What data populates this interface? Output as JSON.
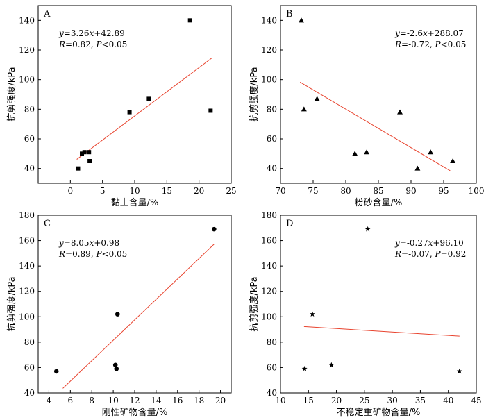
{
  "chart_data": [
    {
      "type": "scatter",
      "panel": "A",
      "xlabel": "黏土含量/%",
      "ylabel": "抗剪强度/kPa",
      "xlim": [
        -5,
        25
      ],
      "ylim": [
        30,
        150
      ],
      "xticks": [
        0,
        5,
        10,
        15,
        20,
        25
      ],
      "yticks": [
        40,
        60,
        80,
        100,
        120,
        140
      ],
      "marker": "square",
      "points": [
        {
          "x": 1.2,
          "y": 40
        },
        {
          "x": 1.8,
          "y": 50
        },
        {
          "x": 2.2,
          "y": 51
        },
        {
          "x": 2.9,
          "y": 51
        },
        {
          "x": 3.0,
          "y": 45
        },
        {
          "x": 9.2,
          "y": 78
        },
        {
          "x": 12.2,
          "y": 87
        },
        {
          "x": 18.6,
          "y": 140
        },
        {
          "x": 21.8,
          "y": 79
        }
      ],
      "fit": {
        "slope": 3.26,
        "intercept": 42.89,
        "x_range": [
          1.0,
          22.0
        ]
      },
      "equation": "y=3.26x+42.89",
      "stats": "R=0.82, P<0.05",
      "legend_position": "top-left"
    },
    {
      "type": "scatter",
      "panel": "B",
      "xlabel": "粉砂含量/%",
      "ylabel": "抗剪强度/kPa",
      "xlim": [
        70,
        100
      ],
      "ylim": [
        30,
        150
      ],
      "xticks": [
        70,
        75,
        80,
        85,
        90,
        95,
        100
      ],
      "yticks": [
        40,
        60,
        80,
        100,
        120,
        140
      ],
      "marker": "triangle",
      "points": [
        {
          "x": 73.2,
          "y": 140
        },
        {
          "x": 73.6,
          "y": 80
        },
        {
          "x": 75.6,
          "y": 87
        },
        {
          "x": 81.4,
          "y": 50
        },
        {
          "x": 83.2,
          "y": 51
        },
        {
          "x": 88.3,
          "y": 78
        },
        {
          "x": 91.0,
          "y": 40
        },
        {
          "x": 93.0,
          "y": 51
        },
        {
          "x": 96.4,
          "y": 45
        }
      ],
      "fit": {
        "slope": -2.6,
        "intercept": 288.07,
        "x_range": [
          73.0,
          96.0
        ]
      },
      "equation": "y=-2.6x+288.07",
      "stats": "R=-0.72, P<0.05",
      "legend_position": "top-right"
    },
    {
      "type": "scatter",
      "panel": "C",
      "xlabel": "刚性矿物含量/%",
      "ylabel": "抗剪强度/kPa",
      "xlim": [
        3,
        21
      ],
      "ylim": [
        40,
        180
      ],
      "xticks": [
        4,
        6,
        8,
        10,
        12,
        14,
        16,
        18,
        20
      ],
      "yticks": [
        40,
        60,
        80,
        100,
        120,
        140,
        160,
        180
      ],
      "marker": "circle",
      "points": [
        {
          "x": 4.7,
          "y": 57
        },
        {
          "x": 10.2,
          "y": 62
        },
        {
          "x": 10.3,
          "y": 59
        },
        {
          "x": 10.4,
          "y": 102
        },
        {
          "x": 19.4,
          "y": 169
        }
      ],
      "fit": {
        "slope": 8.05,
        "intercept": 0.98,
        "x_range": [
          5.3,
          19.4
        ]
      },
      "equation": "y=8.05x+0.98",
      "stats": "R=0.89, P<0.05",
      "legend_position": "top-left"
    },
    {
      "type": "scatter",
      "panel": "D",
      "xlabel": "不稳定重矿物含量/%",
      "ylabel": "抗剪强度/kPa",
      "xlim": [
        10,
        45
      ],
      "ylim": [
        40,
        180
      ],
      "xticks": [
        10,
        15,
        20,
        25,
        30,
        35,
        40,
        45
      ],
      "yticks": [
        40,
        60,
        80,
        100,
        120,
        140,
        160,
        180
      ],
      "marker": "star",
      "points": [
        {
          "x": 14.3,
          "y": 59
        },
        {
          "x": 15.7,
          "y": 102
        },
        {
          "x": 19.1,
          "y": 62
        },
        {
          "x": 25.6,
          "y": 169
        },
        {
          "x": 42.0,
          "y": 57
        }
      ],
      "fit": {
        "slope": -0.27,
        "intercept": 96.1,
        "x_range": [
          14.2,
          42.0
        ]
      },
      "equation": "y=-0.27x+96.10",
      "stats": "R=-0.07, P=0.92",
      "legend_position": "top-right"
    }
  ],
  "colors": {
    "fit_line": "#e8432e",
    "axis": "#000000",
    "marker": "#000000"
  }
}
